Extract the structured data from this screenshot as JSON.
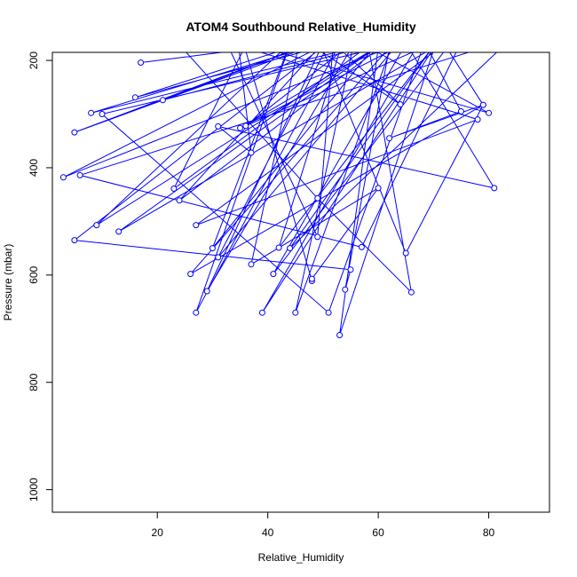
{
  "chart_data": {
    "type": "line",
    "title": "ATOM4 Southbound Relative_Humidity",
    "xlabel": "Relative_Humidity",
    "ylabel": "Pressure (mbar)",
    "xlim": [
      1,
      91
    ],
    "ylim": [
      1042,
      185
    ],
    "y_reversed": true,
    "grid": false,
    "color": "#0000ff",
    "marker": "open-circle",
    "x_ticks": [
      20,
      40,
      60,
      80
    ],
    "y_ticks": [
      200,
      400,
      600,
      800,
      1000
    ],
    "series": [
      {
        "x": [
          17,
          47,
          78,
          21,
          53,
          5,
          48,
          8,
          72,
          3,
          58,
          16,
          66,
          13,
          76,
          36,
          56,
          29,
          50,
          24,
          63,
          9,
          44,
          30,
          61,
          23,
          39,
          64,
          46,
          27,
          54,
          42,
          74,
          35,
          59,
          80,
          32,
          49,
          52,
          31,
          68,
          41,
          78,
          57,
          6,
          84,
          44,
          73,
          39,
          70,
          51,
          10,
          71,
          53,
          61,
          81,
          31,
          37,
          34,
          48,
          48,
          60,
          37,
          47,
          65,
          79,
          72,
          27,
          78,
          20,
          49,
          66,
          57,
          45,
          65,
          75,
          62,
          79,
          26,
          62,
          54,
          55,
          5,
          53
        ],
        "y": [
          204,
          165,
          120,
          274,
          148,
          334,
          173,
          298,
          135,
          418,
          130,
          269,
          129,
          519,
          140,
          322,
          162,
          630,
          168,
          461,
          155,
          507,
          168,
          550,
          152,
          439,
          110,
          282,
          112,
          670,
          150,
          549,
          120,
          326,
          180,
          298,
          155,
          529,
          150,
          567,
          115,
          598,
          102,
          548,
          414,
          160,
          550,
          130,
          670,
          120,
          670,
          300,
          150,
          712,
          100,
          438,
          323,
          372,
          110,
          611,
          607,
          438,
          580,
          105,
          559,
          283,
          170,
          507,
          310,
          125,
          457,
          632,
          100,
          670,
          100,
          295,
          345,
          283,
          598,
          176,
          627,
          590,
          535,
          150
        ]
      }
    ]
  }
}
